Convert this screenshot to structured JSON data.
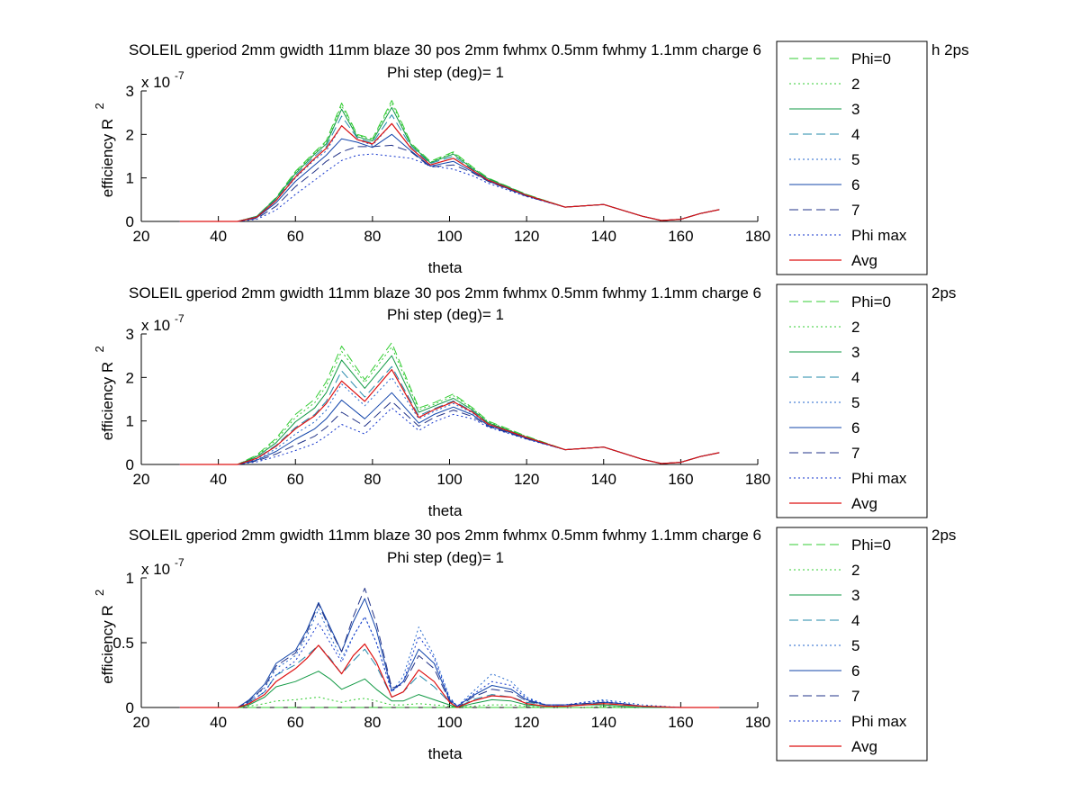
{
  "figure": {
    "background": "#ffffff"
  },
  "chart_data": [
    {
      "type": "line",
      "title": "SOLEIL gperiod 2mm gwidth 11mm blaze 30 pos 2mm fwhmx 0.5mm fwhmy 1.1mm charge 6",
      "title_tail": "h 2ps",
      "subtitle": "Phi step (deg)= 1",
      "xlabel": "theta",
      "ylabel": "efficiency R",
      "ylabel_sup": "2",
      "y_multiplier": "x 10",
      "y_multiplier_exp": "-7",
      "xlim": [
        20,
        180
      ],
      "ylim": [
        0,
        3
      ],
      "xticks": [
        "20",
        "40",
        "60",
        "80",
        "100",
        "120",
        "140",
        "160",
        "180"
      ],
      "yticks": [
        "0",
        "1",
        "2",
        "3"
      ],
      "grid": false,
      "legend_position": "outside-right",
      "x": [
        30,
        45,
        50,
        55,
        60,
        65,
        68,
        72,
        76,
        80,
        85,
        90,
        95,
        101,
        106,
        110,
        120,
        130,
        140,
        150,
        155,
        160,
        165,
        170
      ],
      "series": [
        {
          "name": "Phi=0",
          "color": "#33cc33",
          "dash": "10,5",
          "width": 1,
          "values": [
            0,
            0,
            0.12,
            0.55,
            1.15,
            1.6,
            1.85,
            2.72,
            2.0,
            1.9,
            2.78,
            1.8,
            1.38,
            1.6,
            1.25,
            1.0,
            0.62,
            0.33,
            0.39,
            0.12,
            0.02,
            0.05,
            0.18,
            0.27
          ]
        },
        {
          "name": "2",
          "color": "#33cc33",
          "dash": "2,3",
          "width": 1,
          "values": [
            0,
            0,
            0.12,
            0.54,
            1.13,
            1.58,
            1.82,
            2.66,
            1.98,
            1.88,
            2.72,
            1.78,
            1.36,
            1.58,
            1.23,
            0.99,
            0.62,
            0.33,
            0.39,
            0.12,
            0.02,
            0.05,
            0.18,
            0.27
          ]
        },
        {
          "name": "3",
          "color": "#119944",
          "dash": "",
          "width": 1,
          "values": [
            0,
            0,
            0.12,
            0.53,
            1.1,
            1.55,
            1.78,
            2.58,
            1.95,
            1.85,
            2.62,
            1.76,
            1.35,
            1.55,
            1.21,
            0.98,
            0.61,
            0.33,
            0.39,
            0.12,
            0.02,
            0.05,
            0.18,
            0.27
          ]
        },
        {
          "name": "4",
          "color": "#2288aa",
          "dash": "10,5",
          "width": 1,
          "values": [
            0,
            0,
            0.11,
            0.51,
            1.06,
            1.5,
            1.72,
            2.42,
            1.92,
            1.8,
            2.45,
            1.72,
            1.33,
            1.5,
            1.19,
            0.96,
            0.6,
            0.33,
            0.39,
            0.12,
            0.02,
            0.05,
            0.18,
            0.27
          ]
        },
        {
          "name": "5",
          "color": "#2266cc",
          "dash": "2,3",
          "width": 1,
          "values": [
            0,
            0,
            0.1,
            0.48,
            1.0,
            1.42,
            1.62,
            2.2,
            1.88,
            1.75,
            2.25,
            1.68,
            1.3,
            1.45,
            1.17,
            0.95,
            0.6,
            0.33,
            0.39,
            0.12,
            0.02,
            0.05,
            0.18,
            0.27
          ]
        },
        {
          "name": "6",
          "color": "#1144aa",
          "dash": "",
          "width": 1,
          "values": [
            0,
            0,
            0.09,
            0.43,
            0.92,
            1.3,
            1.52,
            1.9,
            1.82,
            1.7,
            2.0,
            1.62,
            1.27,
            1.38,
            1.14,
            0.93,
            0.59,
            0.33,
            0.39,
            0.12,
            0.02,
            0.05,
            0.18,
            0.27
          ]
        },
        {
          "name": "7",
          "color": "#223388",
          "dash": "10,5",
          "width": 1,
          "values": [
            0,
            0,
            0.07,
            0.35,
            0.8,
            1.15,
            1.38,
            1.6,
            1.72,
            1.72,
            1.75,
            1.6,
            1.25,
            1.3,
            1.12,
            0.92,
            0.58,
            0.33,
            0.39,
            0.12,
            0.02,
            0.05,
            0.18,
            0.27
          ]
        },
        {
          "name": "Phi max",
          "color": "#1133cc",
          "dash": "2,3",
          "width": 1,
          "values": [
            0,
            0,
            0.05,
            0.26,
            0.62,
            0.95,
            1.15,
            1.4,
            1.52,
            1.55,
            1.5,
            1.45,
            1.28,
            1.2,
            1.05,
            0.88,
            0.57,
            0.33,
            0.39,
            0.12,
            0.02,
            0.05,
            0.18,
            0.27
          ]
        },
        {
          "name": "Avg",
          "color": "#dd1111",
          "dash": "",
          "width": 1.2,
          "values": [
            0,
            0,
            0.1,
            0.48,
            1.02,
            1.45,
            1.68,
            2.2,
            1.88,
            1.78,
            2.25,
            1.68,
            1.3,
            1.45,
            1.17,
            0.95,
            0.6,
            0.33,
            0.39,
            0.12,
            0.02,
            0.05,
            0.18,
            0.27
          ]
        }
      ]
    },
    {
      "type": "line",
      "title": "SOLEIL gperiod 2mm gwidth 11mm blaze 30 pos 2mm fwhmx 0.5mm fwhmy 1.1mm charge 6",
      "title_tail": "2ps",
      "subtitle": "Phi step (deg)= 1",
      "xlabel": "theta",
      "ylabel": "efficiency R",
      "ylabel_sup": "2",
      "y_multiplier": "x 10",
      "y_multiplier_exp": "-7",
      "xlim": [
        20,
        180
      ],
      "ylim": [
        0,
        3
      ],
      "xticks": [
        "20",
        "40",
        "60",
        "80",
        "100",
        "120",
        "140",
        "160",
        "180"
      ],
      "yticks": [
        "0",
        "1",
        "2",
        "3"
      ],
      "grid": false,
      "legend_position": "outside-right",
      "x": [
        30,
        45,
        50,
        55,
        60,
        65,
        68,
        72,
        78,
        85,
        92,
        96,
        101,
        106,
        110,
        120,
        130,
        140,
        150,
        155,
        160,
        165,
        170
      ],
      "series": [
        {
          "name": "Phi=0",
          "color": "#33cc33",
          "dash": "10,5",
          "width": 1,
          "values": [
            0,
            0,
            0.22,
            0.6,
            1.15,
            1.5,
            1.9,
            2.72,
            1.95,
            2.8,
            1.3,
            1.42,
            1.62,
            1.3,
            1.0,
            0.65,
            0.34,
            0.4,
            0.12,
            0.02,
            0.05,
            0.18,
            0.27
          ]
        },
        {
          "name": "2",
          "color": "#33cc33",
          "dash": "2,3",
          "width": 1,
          "values": [
            0,
            0,
            0.2,
            0.56,
            1.08,
            1.42,
            1.8,
            2.6,
            1.88,
            2.7,
            1.26,
            1.38,
            1.58,
            1.28,
            0.98,
            0.64,
            0.34,
            0.4,
            0.12,
            0.02,
            0.05,
            0.18,
            0.27
          ]
        },
        {
          "name": "3",
          "color": "#119944",
          "dash": "",
          "width": 1,
          "values": [
            0,
            0,
            0.18,
            0.5,
            0.98,
            1.3,
            1.65,
            2.4,
            1.75,
            2.5,
            1.2,
            1.34,
            1.52,
            1.25,
            0.96,
            0.63,
            0.34,
            0.4,
            0.12,
            0.02,
            0.05,
            0.18,
            0.27
          ]
        },
        {
          "name": "4",
          "color": "#2288aa",
          "dash": "10,5",
          "width": 1,
          "values": [
            0,
            0,
            0.15,
            0.44,
            0.85,
            1.15,
            1.45,
            2.15,
            1.55,
            2.25,
            1.12,
            1.28,
            1.46,
            1.22,
            0.94,
            0.62,
            0.34,
            0.4,
            0.12,
            0.02,
            0.05,
            0.18,
            0.27
          ]
        },
        {
          "name": "5",
          "color": "#2266cc",
          "dash": "2,3",
          "width": 1,
          "values": [
            0,
            0,
            0.12,
            0.36,
            0.7,
            0.98,
            1.25,
            1.85,
            1.35,
            2.0,
            1.05,
            1.22,
            1.4,
            1.18,
            0.92,
            0.61,
            0.34,
            0.4,
            0.12,
            0.02,
            0.05,
            0.18,
            0.27
          ]
        },
        {
          "name": "6",
          "color": "#1144aa",
          "dash": "",
          "width": 1,
          "values": [
            0,
            0,
            0.1,
            0.3,
            0.58,
            0.82,
            1.05,
            1.48,
            1.05,
            1.65,
            0.95,
            1.15,
            1.32,
            1.14,
            0.9,
            0.6,
            0.34,
            0.4,
            0.12,
            0.02,
            0.05,
            0.18,
            0.27
          ]
        },
        {
          "name": "7",
          "color": "#223388",
          "dash": "10,5",
          "width": 1,
          "values": [
            0,
            0,
            0.08,
            0.24,
            0.45,
            0.65,
            0.85,
            1.2,
            0.88,
            1.45,
            0.88,
            1.08,
            1.25,
            1.1,
            0.88,
            0.59,
            0.34,
            0.4,
            0.12,
            0.02,
            0.05,
            0.18,
            0.27
          ]
        },
        {
          "name": "Phi max",
          "color": "#1133cc",
          "dash": "2,3",
          "width": 1,
          "values": [
            0,
            0,
            0.06,
            0.18,
            0.32,
            0.48,
            0.65,
            0.92,
            0.7,
            1.3,
            0.78,
            0.98,
            1.15,
            1.05,
            0.86,
            0.58,
            0.34,
            0.4,
            0.12,
            0.02,
            0.05,
            0.18,
            0.27
          ]
        },
        {
          "name": "Avg",
          "color": "#dd1111",
          "dash": "",
          "width": 1.2,
          "values": [
            0,
            0,
            0.14,
            0.42,
            0.82,
            1.12,
            1.4,
            1.92,
            1.45,
            2.18,
            1.08,
            1.26,
            1.44,
            1.2,
            0.93,
            0.62,
            0.34,
            0.4,
            0.12,
            0.02,
            0.05,
            0.18,
            0.27
          ]
        }
      ]
    },
    {
      "type": "line",
      "title": "SOLEIL gperiod 2mm gwidth 11mm blaze 30 pos 2mm fwhmx 0.5mm fwhmy 1.1mm charge 6",
      "title_tail": "2ps",
      "subtitle": "Phi step (deg)= 1",
      "xlabel": "theta",
      "ylabel": "efficiency R",
      "ylabel_sup": "2",
      "y_multiplier": "x 10",
      "y_multiplier_exp": "-7",
      "xlim": [
        20,
        180
      ],
      "ylim": [
        0,
        1
      ],
      "xticks": [
        "20",
        "40",
        "60",
        "80",
        "100",
        "120",
        "140",
        "160",
        "180"
      ],
      "yticks": [
        "0",
        "0.5",
        "1"
      ],
      "grid": false,
      "legend_position": "outside-right",
      "x": [
        30,
        45,
        48,
        52,
        55,
        60,
        63,
        66,
        69,
        72,
        75,
        78,
        81,
        85,
        88,
        92,
        96,
        100,
        102,
        106,
        111,
        116,
        120,
        125,
        130,
        135,
        140,
        145,
        150,
        160,
        170
      ],
      "series": [
        {
          "name": "Phi=0",
          "color": "#33cc33",
          "dash": "10,5",
          "width": 1,
          "values": [
            0,
            0,
            0,
            0,
            0,
            0,
            0,
            0,
            0,
            0,
            0,
            0,
            0,
            0,
            0,
            0,
            0,
            0,
            0,
            0,
            0,
            0,
            0,
            0,
            0,
            0,
            0,
            0,
            0,
            0,
            0
          ]
        },
        {
          "name": "2",
          "color": "#33cc33",
          "dash": "2,3",
          "width": 1,
          "values": [
            0,
            0,
            0.01,
            0.03,
            0.05,
            0.06,
            0.07,
            0.08,
            0.06,
            0.04,
            0.06,
            0.07,
            0.05,
            0.02,
            0.02,
            0.03,
            0.02,
            0.01,
            0,
            0.01,
            0.02,
            0.02,
            0.01,
            0,
            0,
            0,
            0.01,
            0,
            0,
            0,
            0
          ]
        },
        {
          "name": "3",
          "color": "#119944",
          "dash": "",
          "width": 1,
          "values": [
            0,
            0,
            0.02,
            0.08,
            0.16,
            0.2,
            0.24,
            0.28,
            0.22,
            0.14,
            0.18,
            0.22,
            0.14,
            0.05,
            0.05,
            0.1,
            0.06,
            0.02,
            0,
            0.03,
            0.06,
            0.05,
            0.02,
            0.01,
            0.01,
            0.02,
            0.02,
            0.01,
            0,
            0,
            0
          ]
        },
        {
          "name": "4",
          "color": "#2288aa",
          "dash": "10,5",
          "width": 1,
          "values": [
            0,
            0,
            0.04,
            0.12,
            0.25,
            0.33,
            0.4,
            0.48,
            0.38,
            0.26,
            0.36,
            0.45,
            0.32,
            0.08,
            0.12,
            0.25,
            0.16,
            0.04,
            0,
            0.06,
            0.1,
            0.08,
            0.04,
            0.02,
            0.02,
            0.03,
            0.03,
            0.02,
            0.01,
            0,
            0
          ]
        },
        {
          "name": "5",
          "color": "#2266cc",
          "dash": "2,3",
          "width": 1,
          "values": [
            0,
            0,
            0.05,
            0.15,
            0.3,
            0.4,
            0.55,
            0.76,
            0.55,
            0.38,
            0.55,
            0.7,
            0.5,
            0.12,
            0.24,
            0.62,
            0.4,
            0.08,
            0.01,
            0.12,
            0.26,
            0.2,
            0.08,
            0.02,
            0.02,
            0.04,
            0.06,
            0.04,
            0.02,
            0,
            0
          ]
        },
        {
          "name": "6",
          "color": "#1144aa",
          "dash": "",
          "width": 1,
          "values": [
            0,
            0,
            0.06,
            0.18,
            0.34,
            0.44,
            0.6,
            0.81,
            0.62,
            0.43,
            0.66,
            0.84,
            0.6,
            0.13,
            0.2,
            0.45,
            0.34,
            0.06,
            0.01,
            0.09,
            0.17,
            0.14,
            0.06,
            0.02,
            0.02,
            0.03,
            0.04,
            0.03,
            0.01,
            0,
            0
          ]
        },
        {
          "name": "7",
          "color": "#223388",
          "dash": "10,5",
          "width": 1,
          "values": [
            0,
            0,
            0.05,
            0.16,
            0.32,
            0.42,
            0.58,
            0.8,
            0.6,
            0.43,
            0.7,
            0.92,
            0.65,
            0.15,
            0.18,
            0.4,
            0.3,
            0.05,
            0,
            0.08,
            0.14,
            0.12,
            0.05,
            0.02,
            0.02,
            0.03,
            0.04,
            0.03,
            0.01,
            0,
            0
          ]
        },
        {
          "name": "Phi max",
          "color": "#1133cc",
          "dash": "2,3",
          "width": 1,
          "values": [
            0,
            0,
            0.04,
            0.12,
            0.25,
            0.36,
            0.5,
            0.65,
            0.5,
            0.35,
            0.55,
            0.7,
            0.5,
            0.12,
            0.2,
            0.55,
            0.38,
            0.07,
            0.01,
            0.1,
            0.2,
            0.17,
            0.07,
            0.02,
            0.02,
            0.04,
            0.05,
            0.03,
            0.01,
            0,
            0
          ]
        },
        {
          "name": "Avg",
          "color": "#dd1111",
          "dash": "",
          "width": 1.2,
          "values": [
            0,
            0,
            0.03,
            0.1,
            0.2,
            0.3,
            0.38,
            0.48,
            0.37,
            0.26,
            0.4,
            0.49,
            0.35,
            0.08,
            0.12,
            0.29,
            0.2,
            0.04,
            0,
            0.05,
            0.09,
            0.08,
            0.03,
            0.01,
            0.01,
            0.02,
            0.03,
            0.02,
            0.01,
            0,
            0
          ]
        }
      ]
    }
  ]
}
